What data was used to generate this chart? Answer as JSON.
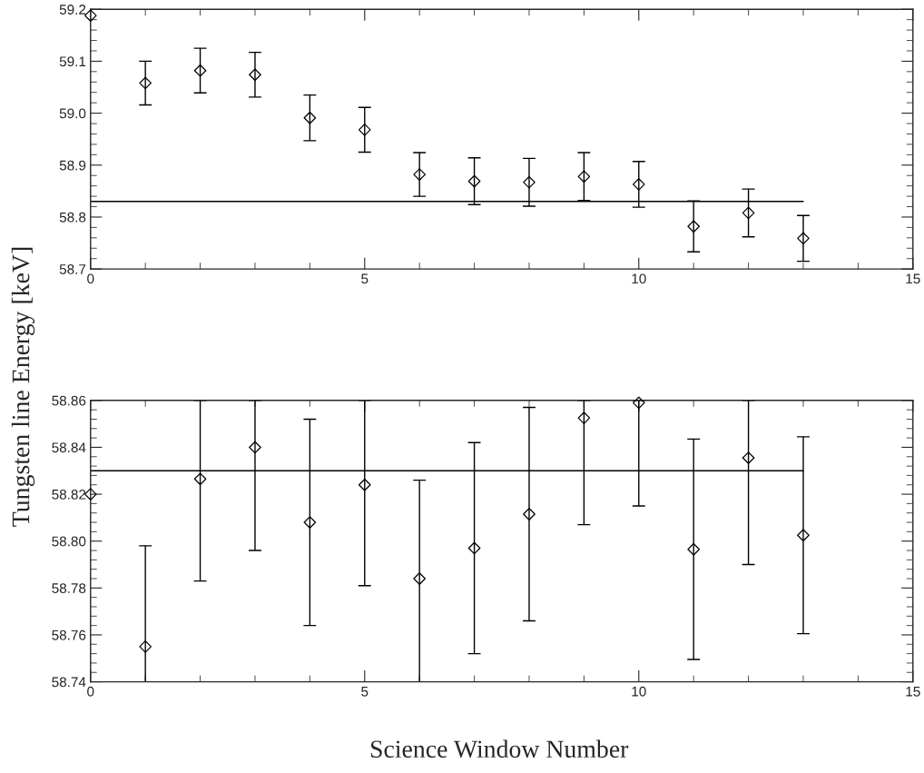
{
  "chart_data": [
    {
      "type": "scatter",
      "ylabel": "Tungsten line Energy [keV]",
      "xlim": [
        0,
        15
      ],
      "xticks": [
        0,
        5,
        10,
        15
      ],
      "ylim": [
        58.7,
        59.2
      ],
      "yticks": [
        {
          "value": 58.7,
          "label": "58.7"
        },
        {
          "value": 58.8,
          "label": "58.8"
        },
        {
          "value": 58.9,
          "label": "58.9"
        },
        {
          "value": 59.0,
          "label": "59.0"
        },
        {
          "value": 59.1,
          "label": "59.1"
        },
        {
          "value": 59.2,
          "label": "59.2"
        }
      ],
      "grid": false,
      "legend": false,
      "series": [
        {
          "color": "#000000",
          "marker": "diamond",
          "x": [
            0,
            1,
            2,
            3,
            4,
            5,
            6,
            7,
            8,
            9,
            10,
            11,
            12,
            13
          ],
          "values": [
            59.188,
            59.058,
            59.082,
            59.074,
            58.991,
            58.968,
            58.882,
            58.869,
            58.867,
            58.878,
            58.863,
            58.782,
            58.808,
            58.759
          ],
          "errors": [
            null,
            0.042,
            0.043,
            0.043,
            0.044,
            0.043,
            0.042,
            0.045,
            0.046,
            0.046,
            0.044,
            0.049,
            0.046,
            0.044
          ]
        },
        {
          "type": "line",
          "color": "#000000",
          "x": [
            0,
            13
          ],
          "values": [
            58.83,
            58.83
          ]
        }
      ]
    },
    {
      "type": "scatter",
      "xlabel": "Science Window Number",
      "xlim": [
        0,
        15
      ],
      "xticks": [
        0,
        5,
        10,
        15
      ],
      "ylim": [
        58.74,
        58.86
      ],
      "yticks": [
        {
          "value": 58.74,
          "label": "58.74"
        },
        {
          "value": 58.76,
          "label": "58.76"
        },
        {
          "value": 58.78,
          "label": "58.78"
        },
        {
          "value": 58.8,
          "label": "58.80"
        },
        {
          "value": 58.82,
          "label": "58.82"
        },
        {
          "value": 58.84,
          "label": "58.84"
        },
        {
          "value": 58.86,
          "label": "58.86"
        }
      ],
      "grid": false,
      "legend": false,
      "series": [
        {
          "color": "#000000",
          "marker": "diamond",
          "x": [
            0,
            1,
            2,
            3,
            4,
            5,
            6,
            7,
            8,
            9,
            10,
            11,
            12,
            13
          ],
          "values": [
            58.82,
            58.755,
            58.8265,
            58.84,
            58.808,
            58.824,
            58.784,
            58.797,
            58.8115,
            58.8525,
            58.859,
            58.7965,
            58.8355,
            58.8025
          ],
          "errors": [
            null,
            [
              58.74,
              58.798
            ],
            [
              58.783,
              58.86
            ],
            [
              58.796,
              58.86
            ],
            0.044,
            [
              58.781,
              58.86
            ],
            [
              58.74,
              58.826
            ],
            0.045,
            0.0455,
            [
              58.807,
              58.86
            ],
            [
              58.815,
              58.86
            ],
            0.047,
            [
              58.79,
              58.86
            ],
            0.042
          ]
        },
        {
          "type": "line",
          "color": "#000000",
          "x": [
            0,
            13
          ],
          "values": [
            58.83,
            58.83
          ]
        }
      ]
    }
  ]
}
